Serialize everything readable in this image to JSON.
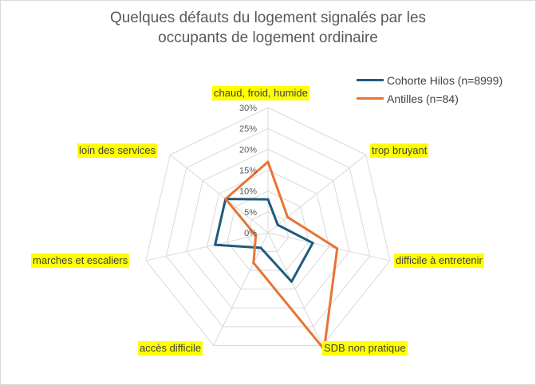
{
  "chart_data": {
    "type": "radar",
    "title_lines": [
      "Quelques défauts du logement signalés par les",
      "occupants de logement ordinaire"
    ],
    "categories": [
      "chaud, froid, humide",
      "trop bruyant",
      "difficile à entretenir",
      "SDB non pratique",
      "accès difficile",
      "marches et escaliers",
      "loin des services"
    ],
    "tick_labels": [
      "0%",
      "5%",
      "10%",
      "15%",
      "20%",
      "25%",
      "30%"
    ],
    "rmax": 30,
    "grid": true,
    "legend_position": "top-right",
    "series": [
      {
        "name": "Cohorte Hilos (n=8999)",
        "color": "#1f5b7a",
        "values": [
          8,
          3,
          11,
          13,
          4,
          13,
          13
        ]
      },
      {
        "name": "Antilles (n=84)",
        "color": "#e87432",
        "values": [
          17,
          6,
          17,
          31,
          8,
          3,
          13
        ]
      }
    ]
  }
}
